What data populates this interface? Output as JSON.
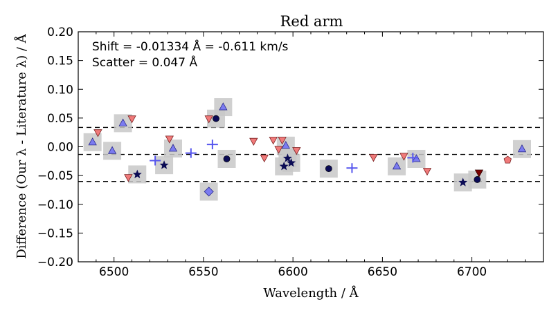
{
  "chart_data": {
    "type": "scatter",
    "title": "Red arm",
    "xlabel": "Wavelength / Å",
    "ylabel": "Difference (Our λ - Literature λ) / Å",
    "xlim": [
      6480,
      6740
    ],
    "ylim": [
      -0.2,
      0.2
    ],
    "x_ticks": [
      6500,
      6550,
      6600,
      6650,
      6700
    ],
    "x_tick_labels": [
      "6500",
      "6550",
      "6600",
      "6650",
      "6700"
    ],
    "y_ticks": [
      0.2,
      0.15,
      0.1,
      0.05,
      0.0,
      -0.05,
      -0.1,
      -0.15,
      -0.2
    ],
    "y_tick_labels": [
      "0.20",
      "0.15",
      "0.10",
      "0.05",
      "0.00",
      "−0.05",
      "−0.10",
      "−0.15",
      "−0.20"
    ],
    "annotations": [
      "Shift = -0.01334 Å = -0.611 km/s",
      "Scatter = 0.047 Å"
    ],
    "reference_lines": [
      {
        "name": "shift",
        "y": -0.0133
      },
      {
        "name": "upper-scatter",
        "y": 0.0337
      },
      {
        "name": "lower-scatter",
        "y": -0.0603
      }
    ],
    "colors": {
      "blue_fill": "#7b7bf0",
      "blue_edge": "#2a2a8a",
      "navy": "#0b0b55",
      "salmon": "#f07a7a",
      "dark_red": "#7a0000",
      "highlight": "#c8c8c8"
    },
    "series": [
      {
        "name": "triangle-up",
        "marker": "triangle-up",
        "color": "#7b7bf0",
        "points": [
          {
            "x": 6488,
            "y": 0.008,
            "hl": true
          },
          {
            "x": 6499,
            "y": -0.007,
            "hl": true
          },
          {
            "x": 6505,
            "y": 0.041,
            "hl": true
          },
          {
            "x": 6533,
            "y": -0.003,
            "hl": true
          },
          {
            "x": 6561,
            "y": 0.069,
            "hl": true
          },
          {
            "x": 6596,
            "y": 0.002,
            "hl": true
          },
          {
            "x": 6658,
            "y": -0.034,
            "hl": true
          },
          {
            "x": 6669,
            "y": -0.021,
            "hl": true
          },
          {
            "x": 6728,
            "y": -0.004,
            "hl": true
          }
        ]
      },
      {
        "name": "triangle-down",
        "marker": "triangle-down",
        "color": "#f07a7a",
        "points": [
          {
            "x": 6491,
            "y": 0.025,
            "hl": false
          },
          {
            "x": 6508,
            "y": -0.053,
            "hl": false
          },
          {
            "x": 6510,
            "y": 0.049,
            "hl": false
          },
          {
            "x": 6531,
            "y": 0.014,
            "hl": false
          },
          {
            "x": 6553,
            "y": 0.049,
            "hl": false
          },
          {
            "x": 6578,
            "y": 0.01,
            "hl": false
          },
          {
            "x": 6584,
            "y": -0.019,
            "hl": false
          },
          {
            "x": 6589,
            "y": 0.012,
            "hl": false
          },
          {
            "x": 6592,
            "y": -0.004,
            "hl": false
          },
          {
            "x": 6594,
            "y": 0.012,
            "hl": false
          },
          {
            "x": 6602,
            "y": -0.006,
            "hl": false
          },
          {
            "x": 6645,
            "y": -0.018,
            "hl": false
          },
          {
            "x": 6662,
            "y": -0.016,
            "hl": false
          },
          {
            "x": 6675,
            "y": -0.042,
            "hl": false
          },
          {
            "x": 6704,
            "y": -0.045,
            "hl": false,
            "dark": true
          }
        ]
      },
      {
        "name": "star",
        "marker": "star",
        "color": "#0b0b55",
        "points": [
          {
            "x": 6513,
            "y": -0.048,
            "hl": true
          },
          {
            "x": 6528,
            "y": -0.032,
            "hl": true
          },
          {
            "x": 6595,
            "y": -0.034,
            "hl": true
          },
          {
            "x": 6597,
            "y": -0.02,
            "hl": true
          },
          {
            "x": 6599,
            "y": -0.028,
            "hl": true
          },
          {
            "x": 6695,
            "y": -0.062,
            "hl": true
          }
        ]
      },
      {
        "name": "circle",
        "marker": "circle",
        "color": "#0b0b55",
        "points": [
          {
            "x": 6557,
            "y": 0.049,
            "hl": true
          },
          {
            "x": 6563,
            "y": -0.021,
            "hl": true
          },
          {
            "x": 6620,
            "y": -0.038,
            "hl": true
          },
          {
            "x": 6703,
            "y": -0.057,
            "hl": true
          }
        ]
      },
      {
        "name": "plus",
        "marker": "plus",
        "color": "#5555ee",
        "points": [
          {
            "x": 6523,
            "y": -0.024,
            "hl": false
          },
          {
            "x": 6543,
            "y": -0.011,
            "hl": false
          },
          {
            "x": 6555,
            "y": 0.004,
            "hl": false
          },
          {
            "x": 6633,
            "y": -0.037,
            "hl": false
          },
          {
            "x": 6667,
            "y": -0.019,
            "hl": false
          }
        ]
      },
      {
        "name": "diamond",
        "marker": "diamond",
        "color": "#7b7bf0",
        "points": [
          {
            "x": 6553,
            "y": -0.078,
            "hl": true
          }
        ]
      },
      {
        "name": "pentagon",
        "marker": "pentagon",
        "color": "#f07a7a",
        "points": [
          {
            "x": 6720,
            "y": -0.023,
            "hl": false
          }
        ]
      }
    ]
  }
}
